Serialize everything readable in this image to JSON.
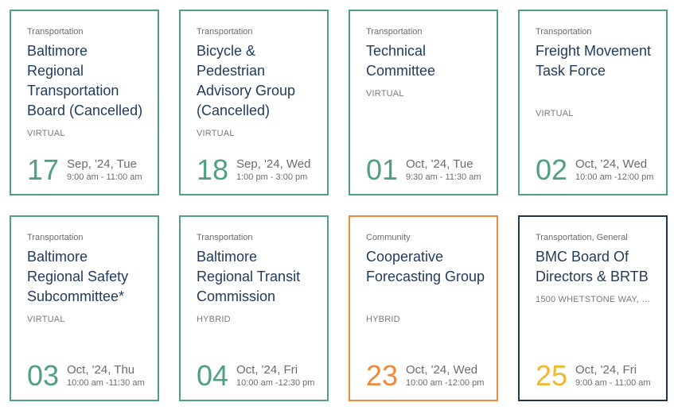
{
  "events": [
    {
      "category": "Transportation",
      "title": "Baltimore Regional Transportation Board (Cancelled)",
      "format": "VIRTUAL",
      "day": "17",
      "month_weekday": "Sep, '24, Tue",
      "time": "9:00 am -  11:00 am",
      "border_color": "#4f9f83",
      "day_color": "#4f9f83"
    },
    {
      "category": "Transportation",
      "title": "Bicycle & Pedestrian Advisory Group (Cancelled)",
      "format": "VIRTUAL",
      "day": "18",
      "month_weekday": "Sep, '24, Wed",
      "time": "1:00 pm -  3:00 pm",
      "border_color": "#4f9f83",
      "day_color": "#4f9f83"
    },
    {
      "category": "Transportation",
      "title": "Technical Committee",
      "format": "VIRTUAL",
      "day": "01",
      "month_weekday": "Oct, '24, Tue",
      "time": "9:30 am -  11:30 am",
      "border_color": "#4f9f83",
      "day_color": "#4f9f83"
    },
    {
      "category": "Transportation",
      "title": "Freight Movement Task Force",
      "format": "VIRTUAL",
      "day": "02",
      "month_weekday": "Oct, '24, Wed",
      "time": "10:00 am -12:00 pm",
      "border_color": "#4f9f83",
      "day_color": "#4f9f83"
    },
    {
      "category": "Transportation",
      "title": "Baltimore Regional Safety Subcommittee*",
      "format": "VIRTUAL",
      "day": "03",
      "month_weekday": "Oct, '24, Thu",
      "time": "10:00 am -11:30 am",
      "border_color": "#4f9f83",
      "day_color": "#4f9f83"
    },
    {
      "category": "Transportation",
      "title": "Baltimore Regional Transit Commission",
      "format": "HYBRID",
      "day": "04",
      "month_weekday": "Oct, '24, Fri",
      "time": "10:00 am -12:30 pm",
      "border_color": "#4f9f83",
      "day_color": "#4f9f83"
    },
    {
      "category": "Community",
      "title": "Cooperative Forecasting Group",
      "format": "HYBRID",
      "day": "23",
      "month_weekday": "Oct, '24, Wed",
      "time": "10:00 am -12:00 pm",
      "border_color": "#ef8a3c",
      "day_color": "#ef8a3c"
    },
    {
      "category": "Transportation, General",
      "title": "BMC Board Of Directors & BRTB",
      "format": "1500 WHETSTONE WAY, BA...",
      "day": "25",
      "month_weekday": "Oct, '24, Fri",
      "time": "9:00 am -  11:00 am",
      "border_color": "#1f3550",
      "day_color": "#f2b630"
    }
  ]
}
